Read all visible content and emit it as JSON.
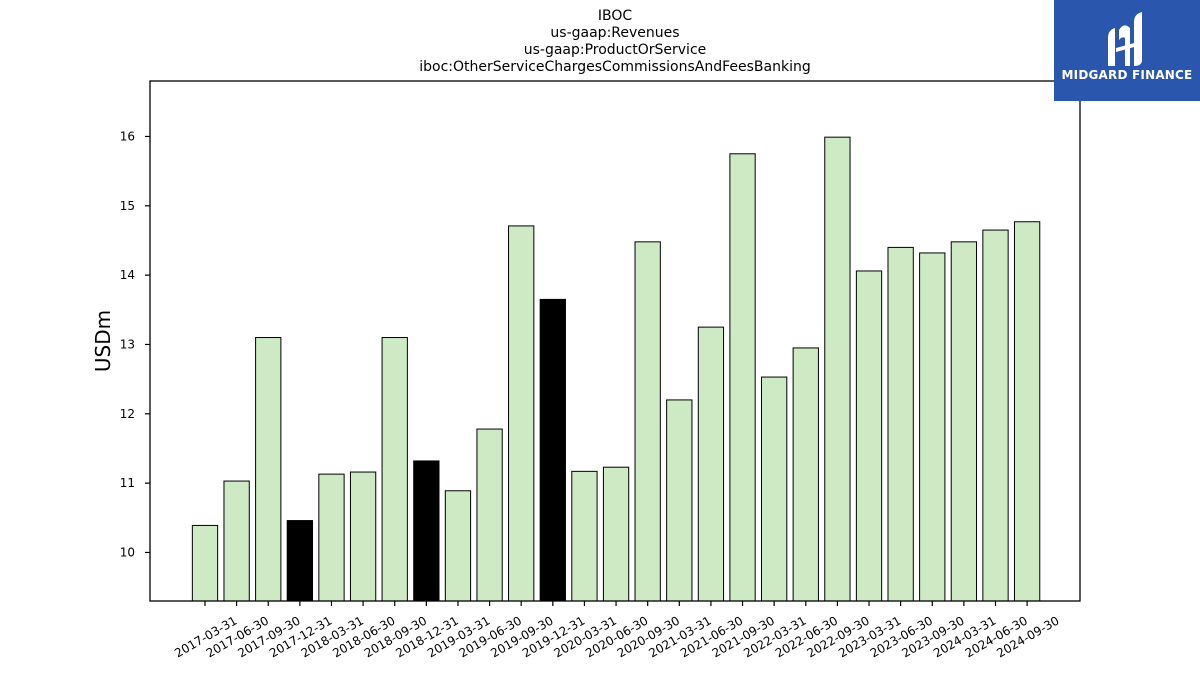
{
  "chart_data": {
    "type": "bar",
    "title_lines": [
      "IBOC",
      "us-gaap:Revenues",
      "us-gaap:ProductOrService",
      "iboc:OtherServiceChargesCommissionsAndFeesBanking"
    ],
    "ylabel": "USDm",
    "xlabel": "",
    "ylim": [
      9.3,
      16.8
    ],
    "yticks": [
      10,
      11,
      12,
      13,
      14,
      15,
      16
    ],
    "categories": [
      "2017-03-31",
      "2017-06-30",
      "2017-09-30",
      "2017-12-31",
      "2018-03-31",
      "2018-06-30",
      "2018-09-30",
      "2018-12-31",
      "2019-03-31",
      "2019-06-30",
      "2019-09-30",
      "2019-12-31",
      "2020-03-31",
      "2020-06-30",
      "2020-09-30",
      "2021-03-31",
      "2021-06-30",
      "2021-09-30",
      "2022-03-31",
      "2022-06-30",
      "2022-09-30",
      "2023-03-31",
      "2023-06-30",
      "2023-09-30",
      "2024-03-31",
      "2024-06-30",
      "2024-09-30"
    ],
    "values": [
      10.39,
      11.03,
      13.1,
      10.46,
      11.13,
      11.16,
      13.1,
      11.32,
      10.89,
      11.78,
      14.71,
      13.65,
      11.17,
      11.23,
      14.48,
      12.2,
      13.25,
      15.75,
      12.53,
      12.95,
      15.99,
      14.06,
      14.4,
      14.32,
      14.48,
      14.65,
      14.77
    ],
    "highlighted": [
      "2017-12-31",
      "2018-12-31",
      "2019-12-31"
    ],
    "colors": {
      "bar": "#cdeac5",
      "highlight": "#000000",
      "edge": "#000000"
    },
    "grid": false,
    "legend": "none"
  },
  "brand": {
    "name": "MIDGARD FINANCE",
    "icon": "midgard-logo-icon",
    "color": "#2b56ad"
  }
}
